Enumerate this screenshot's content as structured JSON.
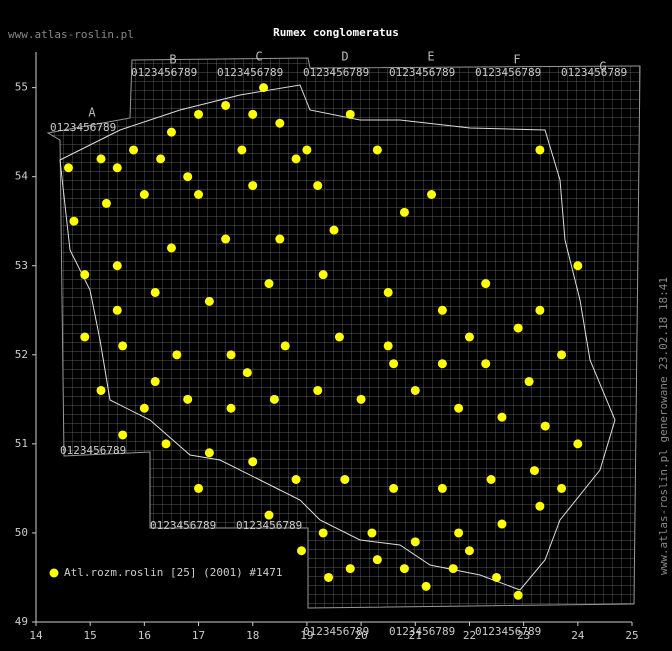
{
  "chart_data": {
    "type": "scatter",
    "title": "Rumex conglomeratus",
    "site": "www.atlas-roslin.pl",
    "side_note": "www.atlas-roslin.pl generowane 23.02.18 18:41",
    "grid_letters": [
      "A",
      "B",
      "C",
      "D",
      "E",
      "F",
      "G"
    ],
    "grid_digits": "0123456789",
    "xlim": [
      14,
      25
    ],
    "ylim": [
      49,
      55.4
    ],
    "xticks": [
      14,
      15,
      16,
      17,
      18,
      19,
      20,
      21,
      22,
      23,
      24,
      25
    ],
    "yticks": [
      49,
      50,
      51,
      52,
      53,
      54,
      55
    ],
    "legend": "lower left",
    "series": [
      {
        "name": "Atl.rozm.roslin [25] (2001) #1471",
        "color": "#ffff00",
        "x": [
          14.6,
          15.2,
          15.8,
          16.5,
          17.0,
          17.5,
          18.0,
          18.5,
          18.2,
          17.8,
          16.8,
          16.0,
          15.3,
          14.7,
          18.8,
          19.2,
          20.3,
          19.8,
          21.3,
          23.3,
          20.8,
          19.5,
          18.5,
          17.5,
          16.5,
          15.5,
          14.9,
          16.2,
          17.2,
          18.3,
          19.3,
          20.5,
          21.5,
          22.3,
          23.3,
          24.0,
          22.9,
          23.7,
          23.1,
          22.3,
          21.5,
          20.5,
          19.6,
          18.6,
          17.6,
          16.6,
          15.6,
          14.9,
          15.2,
          16.0,
          16.8,
          17.6,
          18.4,
          19.2,
          20.0,
          21.0,
          21.8,
          22.6,
          23.4,
          24.0,
          23.2,
          22.4,
          21.5,
          20.6,
          19.7,
          18.8,
          18.0,
          17.2,
          16.4,
          15.6,
          17.0,
          18.3,
          19.3,
          20.2,
          21.0,
          21.8,
          22.6,
          23.3,
          19.8,
          20.8,
          21.7,
          22.5,
          22.9,
          18.9,
          20.3,
          19.4,
          21.2,
          22.0,
          23.7,
          16.2,
          17.9,
          20.6,
          22.0,
          15.5,
          17.0,
          18.0,
          19.0,
          16.3,
          15.5
        ],
        "y": [
          54.1,
          54.2,
          54.3,
          54.5,
          54.7,
          54.8,
          54.7,
          54.6,
          55.0,
          54.3,
          54.0,
          53.8,
          53.7,
          53.5,
          54.2,
          53.9,
          54.3,
          54.7,
          53.8,
          54.3,
          53.6,
          53.4,
          53.3,
          53.3,
          53.2,
          53.0,
          52.9,
          52.7,
          52.6,
          52.8,
          52.9,
          52.7,
          52.5,
          52.8,
          52.5,
          53.0,
          52.3,
          52.0,
          51.7,
          51.9,
          51.9,
          52.1,
          52.2,
          52.1,
          52.0,
          52.0,
          52.1,
          52.2,
          51.6,
          51.4,
          51.5,
          51.4,
          51.5,
          51.6,
          51.5,
          51.6,
          51.4,
          51.3,
          51.2,
          51.0,
          50.7,
          50.6,
          50.5,
          50.5,
          50.6,
          50.6,
          50.8,
          50.9,
          51.0,
          51.1,
          50.5,
          50.2,
          50.0,
          50.0,
          49.9,
          50.0,
          50.1,
          50.3,
          49.6,
          49.6,
          49.6,
          49.5,
          49.3,
          49.8,
          49.7,
          49.5,
          49.4,
          49.8,
          50.5,
          51.7,
          51.8,
          51.9,
          52.2,
          52.5,
          53.8,
          53.9,
          54.3,
          54.2,
          54.1
        ]
      }
    ]
  }
}
